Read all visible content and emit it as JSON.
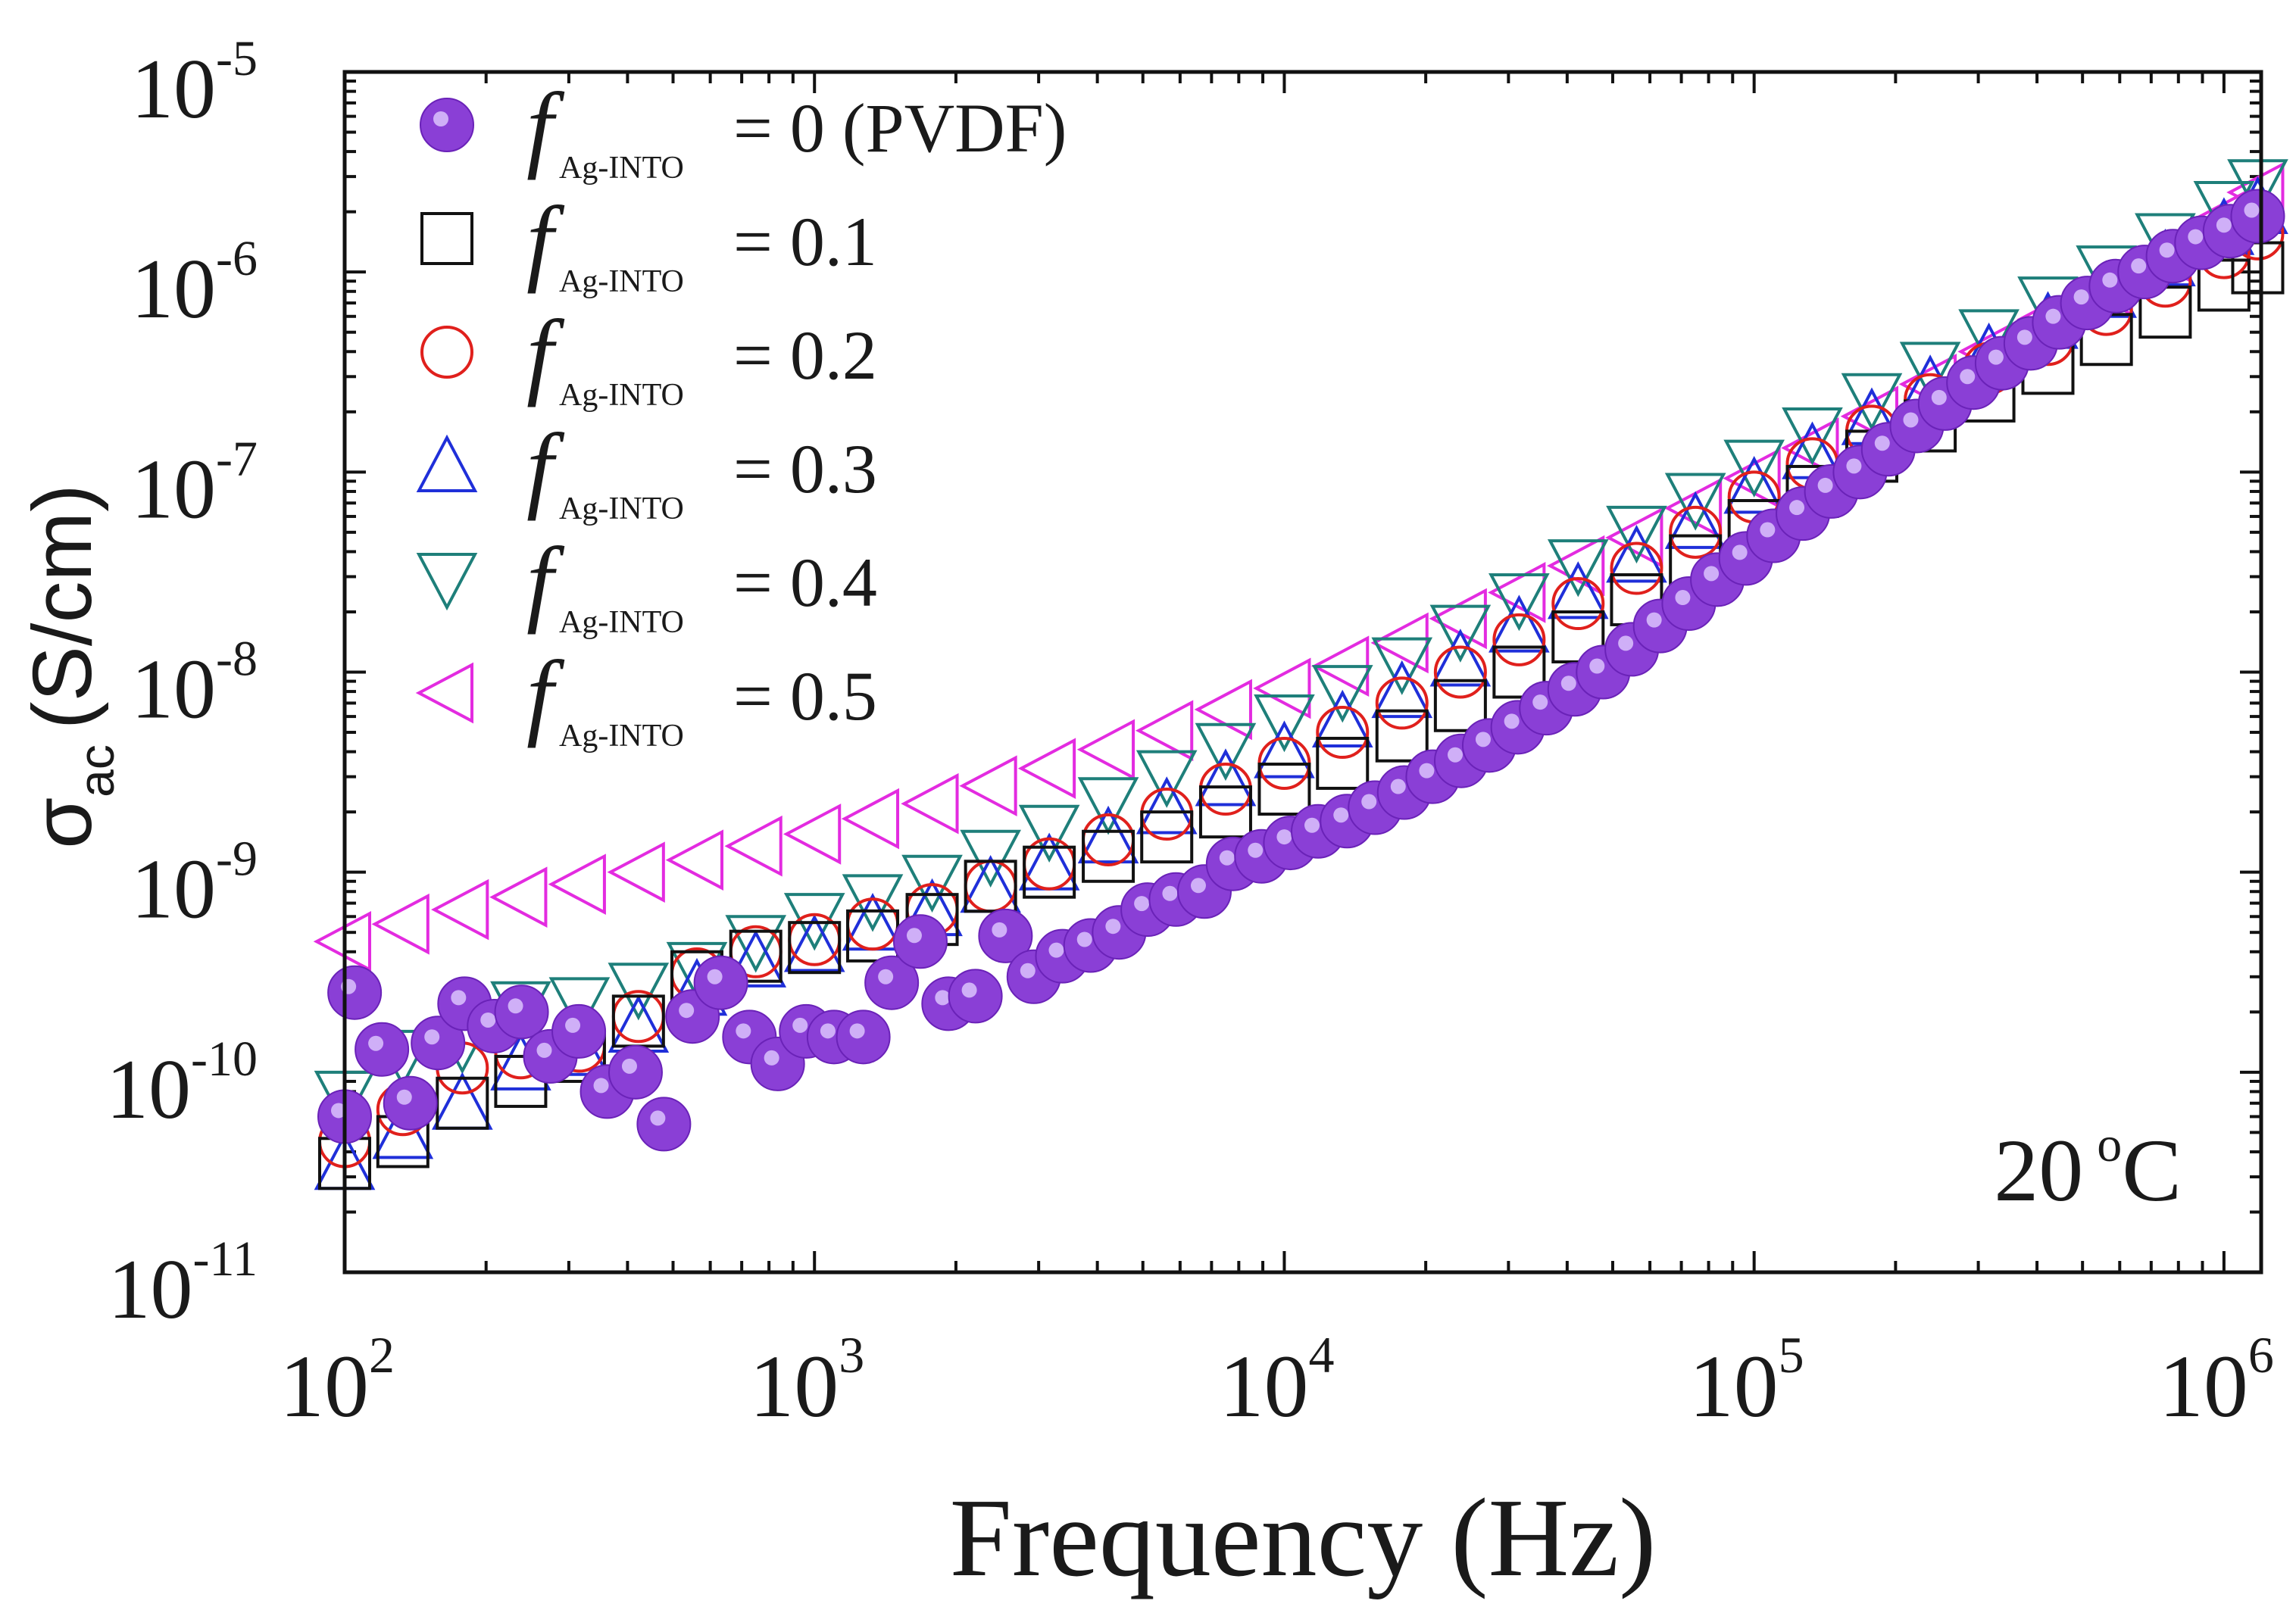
{
  "chart_data": {
    "type": "scatter",
    "xscale": "log",
    "yscale": "log",
    "xlim": [
      100,
      1200000
    ],
    "ylim": [
      1e-11,
      1e-05
    ],
    "xlabel": "Frequency (Hz)",
    "ylabel": {
      "main": "σ",
      "sub": "ac",
      "unit": "(S/cm)"
    },
    "annotation": {
      "value": "20",
      "unit_sup": "o",
      "unit": "C"
    },
    "xticks": [
      {
        "base": "10",
        "exp": "2"
      },
      {
        "base": "10",
        "exp": "3"
      },
      {
        "base": "10",
        "exp": "4"
      },
      {
        "base": "10",
        "exp": "5"
      },
      {
        "base": "10",
        "exp": "6"
      }
    ],
    "yticks": [
      {
        "base": "10",
        "exp": "-11"
      },
      {
        "base": "10",
        "exp": "-10"
      },
      {
        "base": "10",
        "exp": "-9"
      },
      {
        "base": "10",
        "exp": "-8"
      },
      {
        "base": "10",
        "exp": "-7"
      },
      {
        "base": "10",
        "exp": "-6"
      },
      {
        "base": "10",
        "exp": "-5"
      }
    ],
    "legend": {
      "symbol": "f",
      "subscript": "Ag-INTO",
      "placement": "top-left"
    },
    "series": [
      {
        "name": "= 0 (PVDF)",
        "marker": "filled-circle",
        "color": "#8a3fd6",
        "points": [
          [
            100,
            6e-11
          ],
          [
            105,
            2.5e-10
          ],
          [
            120,
            1.3e-10
          ],
          [
            138,
            7e-11
          ],
          [
            158,
            1.4e-10
          ],
          [
            180,
            2.2e-10
          ],
          [
            208,
            1.7e-10
          ],
          [
            238,
            2e-10
          ],
          [
            274,
            1.2e-10
          ],
          [
            315,
            1.6e-10
          ],
          [
            362,
            8e-11
          ],
          [
            416,
            1e-10
          ],
          [
            478,
            5.5e-11
          ],
          [
            550,
            1.9e-10
          ],
          [
            632,
            2.8e-10
          ],
          [
            727,
            1.5e-10
          ],
          [
            835,
            1.1e-10
          ],
          [
            960,
            1.6e-10
          ],
          [
            1100,
            1.5e-10
          ],
          [
            1270,
            1.5e-10
          ],
          [
            1460,
            2.8e-10
          ],
          [
            1680,
            4.5e-10
          ],
          [
            1930,
            2.2e-10
          ],
          [
            2200,
            2.4e-10
          ],
          [
            2550,
            4.8e-10
          ],
          [
            2930,
            3e-10
          ],
          [
            3370,
            3.8e-10
          ],
          [
            3870,
            4.3e-10
          ],
          [
            4450,
            5e-10
          ],
          [
            5120,
            6.5e-10
          ],
          [
            5880,
            7.3e-10
          ],
          [
            6760,
            8e-10
          ],
          [
            7780,
            1.1e-09
          ],
          [
            8940,
            1.2e-09
          ],
          [
            10300,
            1.4e-09
          ],
          [
            11800,
            1.6e-09
          ],
          [
            13600,
            1.8e-09
          ],
          [
            15600,
            2.1e-09
          ],
          [
            18000,
            2.5e-09
          ],
          [
            20700,
            3e-09
          ],
          [
            23800,
            3.6e-09
          ],
          [
            27300,
            4.3e-09
          ],
          [
            31400,
            5.3e-09
          ],
          [
            36100,
            6.6e-09
          ],
          [
            41500,
            8.2e-09
          ],
          [
            47700,
            1e-08
          ],
          [
            54900,
            1.3e-08
          ],
          [
            63100,
            1.7e-08
          ],
          [
            72600,
            2.2e-08
          ],
          [
            83500,
            2.9e-08
          ],
          [
            96000,
            3.7e-08
          ],
          [
            110000,
            4.8e-08
          ],
          [
            127000,
            6.2e-08
          ],
          [
            146000,
            8e-08
          ],
          [
            168000,
            1e-07
          ],
          [
            193000,
            1.3e-07
          ],
          [
            222000,
            1.7e-07
          ],
          [
            255000,
            2.2e-07
          ],
          [
            293000,
            2.8e-07
          ],
          [
            337000,
            3.5e-07
          ],
          [
            388000,
            4.4e-07
          ],
          [
            446000,
            5.6e-07
          ],
          [
            512000,
            7e-07
          ],
          [
            589000,
            8.5e-07
          ],
          [
            678000,
            1e-06
          ],
          [
            779000,
            1.2e-06
          ],
          [
            896000,
            1.4e-06
          ],
          [
            1030000,
            1.6e-06
          ],
          [
            1180000,
            1.9e-06
          ]
        ]
      },
      {
        "name": "= 0.1",
        "marker": "open-square",
        "color": "#111111",
        "points": [
          [
            100,
            3.5e-11
          ],
          [
            133,
            4.5e-11
          ],
          [
            178,
            7e-11
          ],
          [
            237,
            9e-11
          ],
          [
            316,
            1.2e-10
          ],
          [
            422,
            1.8e-10
          ],
          [
            562,
            3e-10
          ],
          [
            750,
            3.8e-10
          ],
          [
            1000,
            4.2e-10
          ],
          [
            1330,
            4.8e-10
          ],
          [
            1780,
            5.8e-10
          ],
          [
            2370,
            8.5e-10
          ],
          [
            3160,
            1e-09
          ],
          [
            4220,
            1.2e-09
          ],
          [
            5620,
            1.5e-09
          ],
          [
            7500,
            2e-09
          ],
          [
            10000,
            2.6e-09
          ],
          [
            13300,
            3.5e-09
          ],
          [
            17800,
            4.8e-09
          ],
          [
            23700,
            6.8e-09
          ],
          [
            31600,
            1e-08
          ],
          [
            42200,
            1.5e-08
          ],
          [
            56200,
            2.3e-08
          ],
          [
            75000,
            3.6e-08
          ],
          [
            100000,
            5.4e-08
          ],
          [
            133000,
            8e-08
          ],
          [
            178000,
            1.2e-07
          ],
          [
            237000,
            1.7e-07
          ],
          [
            316000,
            2.4e-07
          ],
          [
            422000,
            3.3e-07
          ],
          [
            562000,
            4.6e-07
          ],
          [
            750000,
            6.3e-07
          ],
          [
            1000000,
            8.6e-07
          ],
          [
            1180000,
            1.05e-06
          ]
        ]
      },
      {
        "name": "= 0.2",
        "marker": "open-circle",
        "color": "#e0201c",
        "points": [
          [
            100,
            4.5e-11
          ],
          [
            133,
            6.5e-11
          ],
          [
            178,
            1.05e-10
          ],
          [
            237,
            1.25e-10
          ],
          [
            316,
            1.35e-10
          ],
          [
            422,
            1.9e-10
          ],
          [
            562,
            3.1e-10
          ],
          [
            750,
            4e-10
          ],
          [
            1000,
            4.6e-10
          ],
          [
            1330,
            5.5e-10
          ],
          [
            1780,
            6.5e-10
          ],
          [
            2370,
            8.5e-10
          ],
          [
            3160,
            1.1e-09
          ],
          [
            4220,
            1.45e-09
          ],
          [
            5620,
            1.95e-09
          ],
          [
            7500,
            2.6e-09
          ],
          [
            10000,
            3.5e-09
          ],
          [
            13300,
            5e-09
          ],
          [
            17800,
            7e-09
          ],
          [
            23700,
            1e-08
          ],
          [
            31600,
            1.45e-08
          ],
          [
            42200,
            2.2e-08
          ],
          [
            56200,
            3.3e-08
          ],
          [
            75000,
            5e-08
          ],
          [
            100000,
            7.5e-08
          ],
          [
            133000,
            1.1e-07
          ],
          [
            178000,
            1.6e-07
          ],
          [
            237000,
            2.3e-07
          ],
          [
            316000,
            3.3e-07
          ],
          [
            422000,
            4.6e-07
          ],
          [
            562000,
            6.5e-07
          ],
          [
            750000,
            9e-07
          ],
          [
            1000000,
            1.25e-06
          ],
          [
            1180000,
            1.55e-06
          ]
        ]
      },
      {
        "name": "= 0.3",
        "marker": "open-triangle-up",
        "color": "#1f2fd9",
        "points": [
          [
            100,
            3.5e-11
          ],
          [
            133,
            5e-11
          ],
          [
            178,
            7e-11
          ],
          [
            237,
            1.1e-10
          ],
          [
            316,
            1.3e-10
          ],
          [
            422,
            1.7e-10
          ],
          [
            562,
            2.6e-10
          ],
          [
            750,
            3.6e-10
          ],
          [
            1000,
            4.3e-10
          ],
          [
            1330,
            5.5e-10
          ],
          [
            1780,
            6.5e-10
          ],
          [
            2370,
            8.5e-10
          ],
          [
            3160,
            1.1e-09
          ],
          [
            4220,
            1.5e-09
          ],
          [
            5620,
            2.1e-09
          ],
          [
            7500,
            2.9e-09
          ],
          [
            10000,
            4e-09
          ],
          [
            13300,
            5.7e-09
          ],
          [
            17800,
            8e-09
          ],
          [
            23700,
            1.15e-08
          ],
          [
            31600,
            1.7e-08
          ],
          [
            42200,
            2.5e-08
          ],
          [
            56200,
            3.8e-08
          ],
          [
            75000,
            5.6e-08
          ],
          [
            100000,
            8.4e-08
          ],
          [
            133000,
            1.25e-07
          ],
          [
            178000,
            1.85e-07
          ],
          [
            237000,
            2.7e-07
          ],
          [
            316000,
            3.9e-07
          ],
          [
            422000,
            5.6e-07
          ],
          [
            562000,
            8e-07
          ],
          [
            750000,
            1.15e-06
          ],
          [
            1000000,
            1.65e-06
          ],
          [
            1180000,
            2.1e-06
          ]
        ]
      },
      {
        "name": "= 0.4",
        "marker": "open-triangle-down",
        "color": "#1e7f7a",
        "points": [
          [
            100,
            7.5e-11
          ],
          [
            133,
            1.2e-10
          ],
          [
            178,
            1.4e-10
          ],
          [
            237,
            2.1e-10
          ],
          [
            316,
            2.2e-10
          ],
          [
            422,
            2.6e-10
          ],
          [
            562,
            3.3e-10
          ],
          [
            750,
            4.5e-10
          ],
          [
            1000,
            5.8e-10
          ],
          [
            1330,
            7.2e-10
          ],
          [
            1780,
            9e-10
          ],
          [
            2370,
            1.2e-09
          ],
          [
            3160,
            1.6e-09
          ],
          [
            4220,
            2.2e-09
          ],
          [
            5620,
            3e-09
          ],
          [
            7500,
            4.1e-09
          ],
          [
            10000,
            5.7e-09
          ],
          [
            13300,
            8e-09
          ],
          [
            17800,
            1.1e-08
          ],
          [
            23700,
            1.6e-08
          ],
          [
            31600,
            2.3e-08
          ],
          [
            42200,
            3.4e-08
          ],
          [
            56200,
            5e-08
          ],
          [
            75000,
            7.3e-08
          ],
          [
            100000,
            1.07e-07
          ],
          [
            133000,
            1.55e-07
          ],
          [
            178000,
            2.3e-07
          ],
          [
            237000,
            3.3e-07
          ],
          [
            316000,
            4.8e-07
          ],
          [
            422000,
            7e-07
          ],
          [
            562000,
            1e-06
          ],
          [
            750000,
            1.45e-06
          ],
          [
            1000000,
            2.1e-06
          ],
          [
            1180000,
            2.7e-06
          ]
        ]
      },
      {
        "name": "= 0.5",
        "marker": "open-triangle-left",
        "color": "#e32be0",
        "points": [
          [
            100,
            4.5e-10
          ],
          [
            133,
            5.5e-10
          ],
          [
            178,
            6.5e-10
          ],
          [
            237,
            7.5e-10
          ],
          [
            316,
            8.7e-10
          ],
          [
            422,
            1e-09
          ],
          [
            562,
            1.15e-09
          ],
          [
            750,
            1.35e-09
          ],
          [
            1000,
            1.55e-09
          ],
          [
            1330,
            1.85e-09
          ],
          [
            1780,
            2.2e-09
          ],
          [
            2370,
            2.7e-09
          ],
          [
            3160,
            3.3e-09
          ],
          [
            4220,
            4.1e-09
          ],
          [
            5620,
            5.1e-09
          ],
          [
            7500,
            6.5e-09
          ],
          [
            10000,
            8.3e-09
          ],
          [
            13300,
            1.07e-08
          ],
          [
            17800,
            1.4e-08
          ],
          [
            23700,
            1.85e-08
          ],
          [
            31600,
            2.5e-08
          ],
          [
            42200,
            3.4e-08
          ],
          [
            56200,
            4.7e-08
          ],
          [
            75000,
            6.6e-08
          ],
          [
            100000,
            9.3e-08
          ],
          [
            133000,
            1.32e-07
          ],
          [
            178000,
            1.9e-07
          ],
          [
            237000,
            2.75e-07
          ],
          [
            316000,
            4e-07
          ],
          [
            422000,
            5.8e-07
          ],
          [
            562000,
            8.5e-07
          ],
          [
            750000,
            1.25e-06
          ],
          [
            1000000,
            1.85e-06
          ],
          [
            1180000,
            2.5e-06
          ]
        ]
      }
    ]
  }
}
